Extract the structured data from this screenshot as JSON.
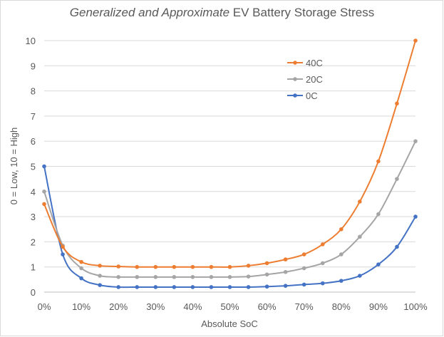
{
  "chart_data": {
    "type": "line",
    "title": {
      "italic": "Generalized and Approximate",
      "rest": " EV Battery Storage Stress"
    },
    "xlabel": "Absolute SoC",
    "ylabel": "0 = Low, 10 = High",
    "x": [
      0,
      5,
      10,
      15,
      20,
      25,
      30,
      35,
      40,
      45,
      50,
      55,
      60,
      65,
      70,
      75,
      80,
      85,
      90,
      95,
      100
    ],
    "x_tick_values": [
      0,
      10,
      20,
      30,
      40,
      50,
      60,
      70,
      80,
      90,
      100
    ],
    "x_tick_labels": [
      "0%",
      "10%",
      "20%",
      "30%",
      "40%",
      "50%",
      "60%",
      "70%",
      "80%",
      "90%",
      "100%"
    ],
    "y_ticks": [
      0,
      1,
      2,
      3,
      4,
      5,
      6,
      7,
      8,
      9,
      10
    ],
    "xlim": [
      0,
      100
    ],
    "ylim": [
      0,
      10
    ],
    "grid": "horizontal",
    "legend_position": "top-right",
    "series": [
      {
        "name": "40C",
        "color": "#ED7D31",
        "values": [
          3.5,
          1.8,
          1.2,
          1.05,
          1.02,
          1.0,
          1.0,
          1.0,
          1.0,
          1.0,
          1.0,
          1.05,
          1.15,
          1.3,
          1.5,
          1.9,
          2.5,
          3.6,
          5.2,
          7.5,
          10.0
        ]
      },
      {
        "name": "20C",
        "color": "#A5A5A5",
        "values": [
          4.0,
          1.85,
          0.95,
          0.65,
          0.6,
          0.6,
          0.6,
          0.6,
          0.6,
          0.6,
          0.6,
          0.62,
          0.7,
          0.8,
          0.95,
          1.15,
          1.5,
          2.2,
          3.1,
          4.5,
          6.0
        ]
      },
      {
        "name": "0C",
        "color": "#4472C4",
        "values": [
          5.0,
          1.5,
          0.55,
          0.28,
          0.2,
          0.2,
          0.2,
          0.2,
          0.2,
          0.2,
          0.2,
          0.2,
          0.22,
          0.25,
          0.3,
          0.35,
          0.45,
          0.65,
          1.1,
          1.8,
          3.0
        ]
      }
    ]
  }
}
